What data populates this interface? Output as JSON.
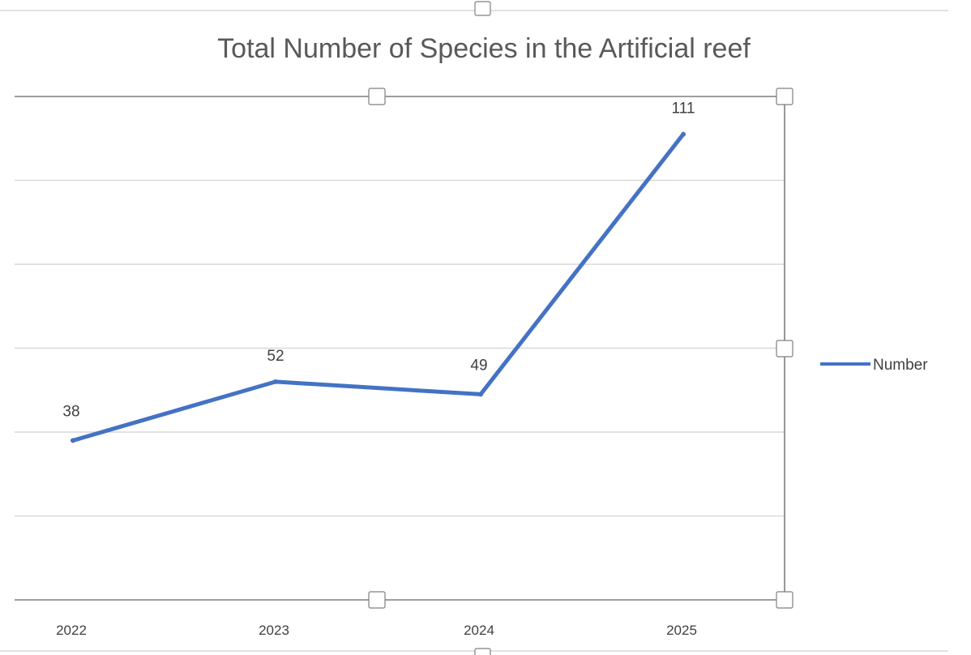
{
  "colors": {
    "series": "#4472C4",
    "gridline": "#d9d9d9",
    "frame": "#7f7f7f",
    "text": "#404040",
    "title": "#595959"
  },
  "chart_data": {
    "type": "line",
    "title": "Total Number of Species in the Artificial reef",
    "xlabel": "",
    "ylabel": "",
    "categories": [
      "2022",
      "2023",
      "2024",
      "2025"
    ],
    "series": [
      {
        "name": "Number",
        "values": [
          38,
          52,
          49,
          111
        ],
        "color": "#4472C4"
      }
    ],
    "data_labels": [
      "38",
      "52",
      "49",
      "111"
    ],
    "ylim": [
      0,
      120
    ],
    "y_tick_step": 20,
    "y_tick_labels_visible": false,
    "grid": true,
    "legend": "right"
  }
}
